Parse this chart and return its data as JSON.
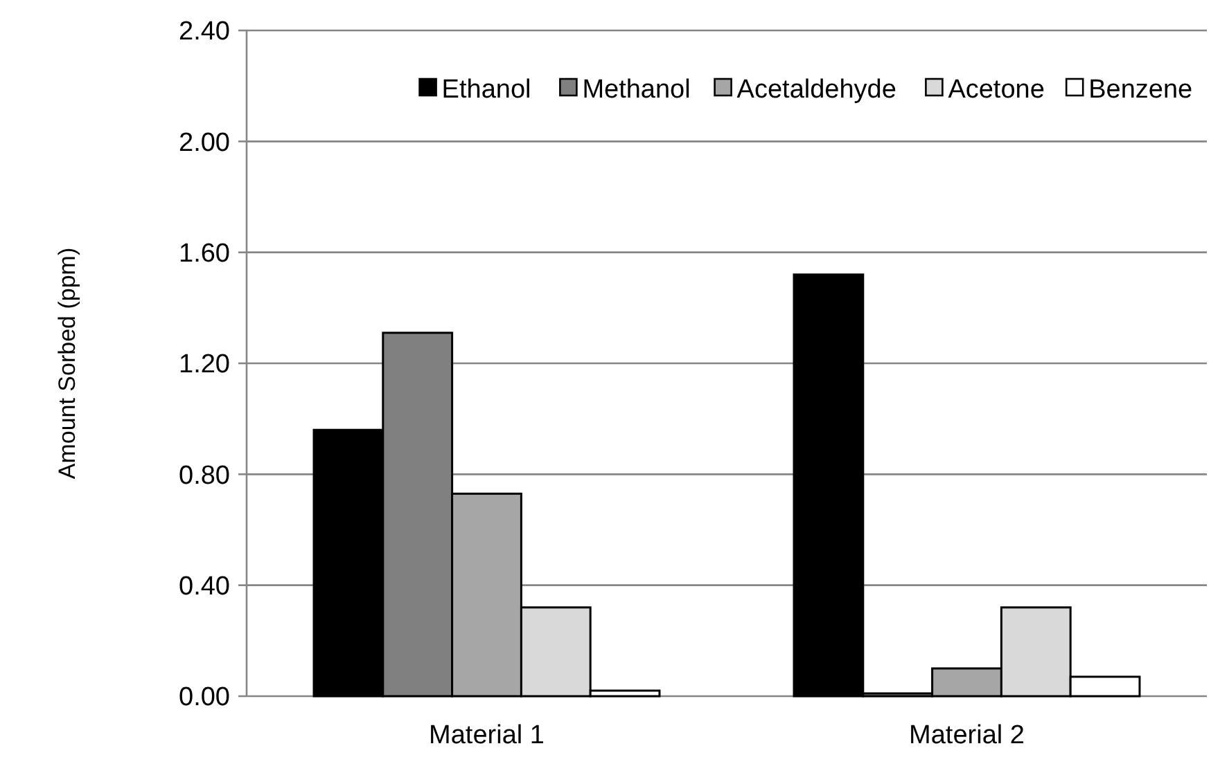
{
  "chart_data": {
    "type": "bar",
    "ylabel": "Amount Sorbed (ppm)",
    "categories": [
      "Material 1",
      "Material 2"
    ],
    "series": [
      {
        "name": "Ethanol",
        "color": "#000000",
        "values": [
          0.96,
          1.52
        ]
      },
      {
        "name": "Methanol",
        "color": "#808080",
        "values": [
          1.31,
          0.01
        ]
      },
      {
        "name": "Acetaldehyde",
        "color": "#a6a6a6",
        "values": [
          0.73,
          0.1
        ]
      },
      {
        "name": "Acetone",
        "color": "#d9d9d9",
        "values": [
          0.32,
          0.32
        ]
      },
      {
        "name": "Benzene",
        "color": "#ffffff",
        "values": [
          0.02,
          0.07
        ]
      }
    ],
    "ylim": [
      0,
      2.4
    ],
    "yticks": [
      {
        "value": 0,
        "label": "0.00"
      },
      {
        "value": 0.4,
        "label": "0.40"
      },
      {
        "value": 0.8,
        "label": "0.80"
      },
      {
        "value": 1.2,
        "label": "1.20"
      },
      {
        "value": 1.6,
        "label": "1.60"
      },
      {
        "value": 2.0,
        "label": "2.00"
      },
      {
        "value": 2.4,
        "label": "2.40"
      }
    ],
    "grid": "y",
    "legend": "top right"
  }
}
